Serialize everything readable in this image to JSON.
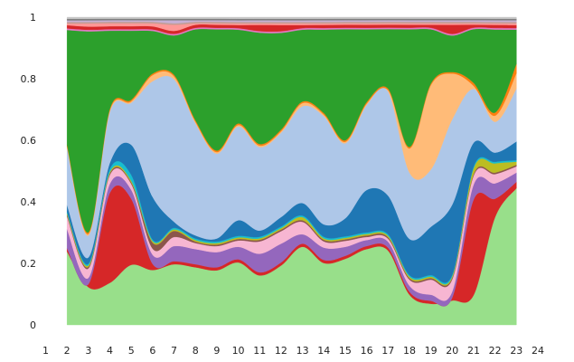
{
  "chart_data": {
    "type": "area",
    "stacked": true,
    "normalized": true,
    "smooth": true,
    "title": "",
    "xlabel": "",
    "ylabel": "",
    "x": [
      2,
      3,
      4,
      5,
      6,
      7,
      8,
      9,
      10,
      11,
      12,
      13,
      14,
      15,
      16,
      17,
      18,
      19,
      20,
      21,
      22,
      23
    ],
    "x_ticks": [
      "1",
      "2",
      "3",
      "4",
      "5",
      "6",
      "7",
      "8",
      "9",
      "10",
      "11",
      "12",
      "13",
      "14",
      "15",
      "16",
      "17",
      "18",
      "19",
      "20",
      "21",
      "22",
      "23",
      "24"
    ],
    "y_ticks": [
      "0",
      "0.2",
      "0.4",
      "0.6",
      "0.8",
      "1"
    ],
    "xlim": [
      1,
      24
    ],
    "ylim": [
      0,
      1
    ],
    "grid": false,
    "legend": "none",
    "series": [
      {
        "color": "#98df8a",
        "values": [
          0.23,
          0.12,
          0.14,
          0.2,
          0.18,
          0.2,
          0.19,
          0.18,
          0.2,
          0.16,
          0.19,
          0.25,
          0.2,
          0.22,
          0.25,
          0.25,
          0.1,
          0.07,
          0.08,
          0.1,
          0.35,
          0.44
        ]
      },
      {
        "color": "#d62728",
        "values": [
          0.01,
          0.01,
          0.3,
          0.22,
          0.02,
          0.01,
          0.01,
          0.01,
          0.01,
          0.01,
          0.01,
          0.01,
          0.01,
          0.01,
          0.01,
          0.01,
          0.01,
          0.01,
          0.01,
          0.32,
          0.06,
          0.02
        ]
      },
      {
        "color": "#9467bd",
        "values": [
          0.06,
          0.02,
          0.03,
          0.03,
          0.03,
          0.05,
          0.05,
          0.05,
          0.04,
          0.06,
          0.06,
          0.03,
          0.04,
          0.03,
          0.02,
          0.02,
          0.02,
          0.02,
          0.02,
          0.05,
          0.05,
          0.03
        ]
      },
      {
        "color": "#f7b6d2",
        "values": [
          0.04,
          0.03,
          0.03,
          0.02,
          0.02,
          0.03,
          0.02,
          0.02,
          0.02,
          0.04,
          0.04,
          0.04,
          0.02,
          0.02,
          0.01,
          0.01,
          0.02,
          0.05,
          0.04,
          0.03,
          0.03,
          0.02
        ]
      },
      {
        "color": "#8c564b",
        "values": [
          0.005,
          0.005,
          0.005,
          0.005,
          0.02,
          0.02,
          0.005,
          0.005,
          0.005,
          0.005,
          0.005,
          0.005,
          0.005,
          0.005,
          0.005,
          0.005,
          0.005,
          0.005,
          0.005,
          0.005,
          0.005,
          0.005
        ]
      },
      {
        "color": "#bcbd22",
        "values": [
          0.005,
          0.005,
          0.005,
          0.005,
          0.005,
          0.005,
          0.005,
          0.005,
          0.005,
          0.005,
          0.005,
          0.01,
          0.005,
          0.005,
          0.005,
          0.005,
          0.005,
          0.005,
          0.005,
          0.02,
          0.03,
          0.01
        ]
      },
      {
        "color": "#17becf",
        "values": [
          0.005,
          0.005,
          0.01,
          0.02,
          0.005,
          0.005,
          0.005,
          0.005,
          0.005,
          0.005,
          0.005,
          0.005,
          0.005,
          0.005,
          0.005,
          0.005,
          0.005,
          0.005,
          0.005,
          0.005,
          0.005,
          0.005
        ]
      },
      {
        "color": "#1f77b4",
        "values": [
          0.02,
          0.02,
          0.02,
          0.1,
          0.14,
          0.02,
          0.01,
          0.01,
          0.05,
          0.02,
          0.03,
          0.04,
          0.04,
          0.06,
          0.14,
          0.13,
          0.12,
          0.16,
          0.23,
          0.08,
          0.03,
          0.06
        ]
      },
      {
        "color": "#aec7e8",
        "values": [
          0.18,
          0.07,
          0.17,
          0.14,
          0.38,
          0.47,
          0.37,
          0.28,
          0.3,
          0.27,
          0.27,
          0.31,
          0.35,
          0.25,
          0.28,
          0.35,
          0.22,
          0.19,
          0.28,
          0.18,
          0.1,
          0.17
        ]
      },
      {
        "color": "#ffbb78",
        "values": [
          0.005,
          0.005,
          0.005,
          0.005,
          0.02,
          0.01,
          0.005,
          0.005,
          0.005,
          0.005,
          0.005,
          0.01,
          0.005,
          0.005,
          0.005,
          0.005,
          0.08,
          0.28,
          0.15,
          0.01,
          0.02,
          0.05
        ]
      },
      {
        "color": "#ff7f0e",
        "values": [
          0.005,
          0.005,
          0.005,
          0.005,
          0.005,
          0.005,
          0.005,
          0.005,
          0.005,
          0.005,
          0.005,
          0.005,
          0.005,
          0.005,
          0.005,
          0.005,
          0.005,
          0.005,
          0.005,
          0.01,
          0.01,
          0.03
        ]
      },
      {
        "color": "#2ca02c",
        "values": [
          0.36,
          0.64,
          0.26,
          0.23,
          0.14,
          0.13,
          0.3,
          0.4,
          0.3,
          0.36,
          0.31,
          0.23,
          0.27,
          0.37,
          0.24,
          0.2,
          0.39,
          0.18,
          0.12,
          0.18,
          0.27,
          0.11
        ]
      },
      {
        "color": "#e377c2",
        "values": [
          0.005,
          0.005,
          0.005,
          0.005,
          0.005,
          0.005,
          0.005,
          0.005,
          0.005,
          0.005,
          0.005,
          0.005,
          0.005,
          0.005,
          0.005,
          0.005,
          0.005,
          0.005,
          0.005,
          0.005,
          0.005,
          0.005
        ]
      },
      {
        "color": "#d62728",
        "values": [
          0.01,
          0.01,
          0.01,
          0.01,
          0.01,
          0.01,
          0.01,
          0.01,
          0.01,
          0.02,
          0.02,
          0.01,
          0.01,
          0.01,
          0.01,
          0.01,
          0.01,
          0.01,
          0.03,
          0.01,
          0.01,
          0.01
        ]
      },
      {
        "color": "#ff9896",
        "values": [
          0.005,
          0.01,
          0.01,
          0.01,
          0.01,
          0.02,
          0.005,
          0.005,
          0.005,
          0.005,
          0.005,
          0.005,
          0.005,
          0.005,
          0.005,
          0.005,
          0.005,
          0.005,
          0.005,
          0.005,
          0.005,
          0.005
        ]
      },
      {
        "color": "#c49c94",
        "values": [
          0.005,
          0.005,
          0.005,
          0.005,
          0.005,
          0.005,
          0.005,
          0.005,
          0.005,
          0.005,
          0.005,
          0.005,
          0.005,
          0.005,
          0.005,
          0.005,
          0.005,
          0.005,
          0.005,
          0.005,
          0.005,
          0.005
        ]
      },
      {
        "color": "#c5b0d5",
        "values": [
          0.005,
          0.005,
          0.005,
          0.005,
          0.005,
          0.01,
          0.005,
          0.005,
          0.005,
          0.005,
          0.005,
          0.005,
          0.005,
          0.005,
          0.005,
          0.005,
          0.005,
          0.005,
          0.005,
          0.005,
          0.005,
          0.005
        ]
      },
      {
        "color": "#7f7f7f",
        "values": [
          0.005,
          0.005,
          0.005,
          0.005,
          0.005,
          0.005,
          0.005,
          0.005,
          0.005,
          0.005,
          0.005,
          0.005,
          0.005,
          0.005,
          0.005,
          0.005,
          0.005,
          0.005,
          0.005,
          0.005,
          0.005,
          0.005
        ]
      },
      {
        "color": "#c7c7c7",
        "values": [
          0.005,
          0.005,
          0.005,
          0.005,
          0.005,
          0.005,
          0.005,
          0.005,
          0.005,
          0.005,
          0.005,
          0.005,
          0.005,
          0.005,
          0.005,
          0.005,
          0.005,
          0.005,
          0.005,
          0.005,
          0.005,
          0.005
        ]
      }
    ]
  }
}
